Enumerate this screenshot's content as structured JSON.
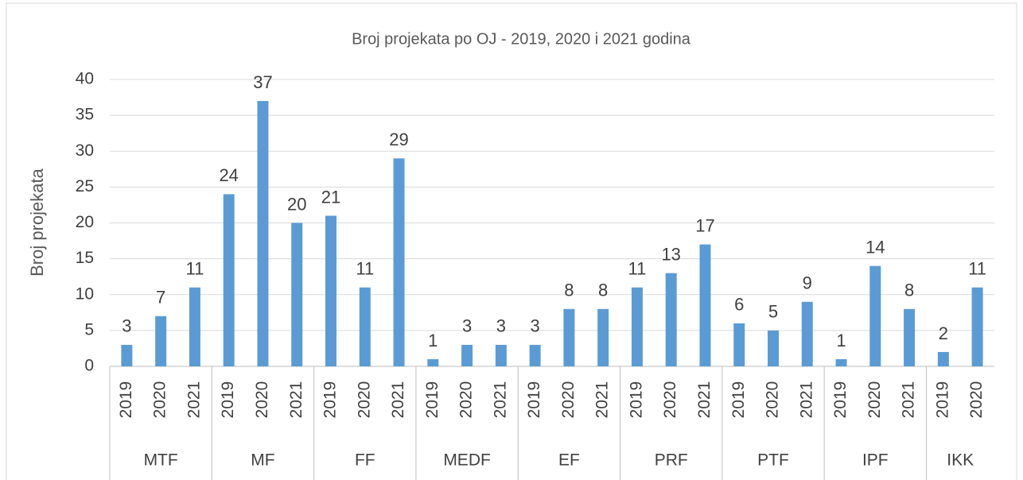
{
  "chart_data": {
    "type": "bar",
    "title": "Broj projekata po OJ - 2019, 2020 i 2021 godina",
    "y_label": "Broj projekata",
    "color": "#5b9bd5",
    "grid": true,
    "ylim": [
      0,
      40
    ],
    "yticks": [
      0,
      5,
      10,
      15,
      20,
      25,
      30,
      35,
      40
    ],
    "groups": [
      {
        "name": "MTF",
        "categories": [
          "2019",
          "2020",
          "2021"
        ],
        "values": [
          3,
          7,
          11
        ]
      },
      {
        "name": "MF",
        "categories": [
          "2019",
          "2020",
          "2021"
        ],
        "values": [
          24,
          37,
          20
        ]
      },
      {
        "name": "FF",
        "categories": [
          "2019",
          "2020",
          "2021"
        ],
        "values": [
          21,
          11,
          29
        ]
      },
      {
        "name": "MEDF",
        "categories": [
          "2019",
          "2020",
          "2021"
        ],
        "values": [
          1,
          3,
          3
        ]
      },
      {
        "name": "EF",
        "categories": [
          "2019",
          "2020",
          "2021"
        ],
        "values": [
          3,
          8,
          8
        ]
      },
      {
        "name": "PRF",
        "categories": [
          "2019",
          "2020",
          "2021"
        ],
        "values": [
          11,
          13,
          17
        ]
      },
      {
        "name": "PTF",
        "categories": [
          "2019",
          "2020",
          "2021"
        ],
        "values": [
          6,
          5,
          9
        ]
      },
      {
        "name": "IPF",
        "categories": [
          "2019",
          "2020",
          "2021"
        ],
        "values": [
          1,
          14,
          8
        ]
      },
      {
        "name": "IKK",
        "categories": [
          "2019",
          "2020"
        ],
        "values": [
          2,
          11
        ]
      }
    ]
  }
}
